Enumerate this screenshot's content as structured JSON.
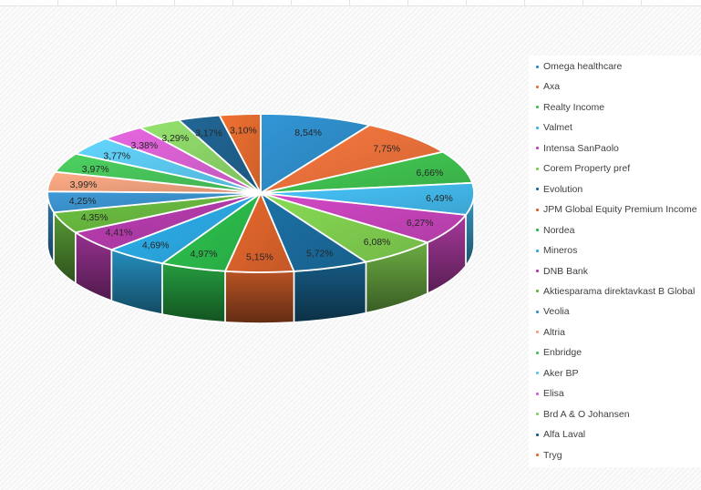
{
  "chart_data": {
    "type": "pie",
    "style": "3d-pie",
    "legend_position": "right",
    "slices": [
      {
        "name": "Omega healthcare",
        "value": 8.54,
        "label": "8,54%",
        "color": "#2e8bc6"
      },
      {
        "name": "Axa",
        "value": 7.75,
        "label": "7,75%",
        "color": "#e8703a"
      },
      {
        "name": "Realty Income",
        "value": 6.66,
        "label": "6,66%",
        "color": "#3fbf4f"
      },
      {
        "name": "Valmet",
        "value": 6.49,
        "label": "6,49%",
        "color": "#42b6e8"
      },
      {
        "name": "Intensa SanPaolo",
        "value": 6.27,
        "label": "6,27%",
        "color": "#c443b8"
      },
      {
        "name": "Corem Property pref",
        "value": 6.08,
        "label": "6,08%",
        "color": "#7fcc4f"
      },
      {
        "name": "Evolution",
        "value": 5.72,
        "label": "5,72%",
        "color": "#1a6a9a"
      },
      {
        "name": "JPM Global Equity Premium Income",
        "value": 5.15,
        "label": "5,15%",
        "color": "#d9622b"
      },
      {
        "name": "Nordea",
        "value": 4.97,
        "label": "4,97%",
        "color": "#2bb84a"
      },
      {
        "name": "Mineros",
        "value": 4.69,
        "label": "4,69%",
        "color": "#2ba6df"
      },
      {
        "name": "DNB Bank",
        "value": 4.41,
        "label": "4,41%",
        "color": "#b03aa8"
      },
      {
        "name": "Aktiesparama direktavkast B Global",
        "value": 4.35,
        "label": "4,35%",
        "color": "#66b53e"
      },
      {
        "name": "Veolia",
        "value": 4.25,
        "label": "4,25%",
        "color": "#3a8fc8"
      },
      {
        "name": "Altria",
        "value": 3.99,
        "label": "3,99%",
        "color": "#f0a07c"
      },
      {
        "name": "Enbridge",
        "value": 3.97,
        "label": "3,97%",
        "color": "#47c25a"
      },
      {
        "name": "Aker BP",
        "value": 3.77,
        "label": "3,77%",
        "color": "#5bc6ee"
      },
      {
        "name": "Elisa",
        "value": 3.38,
        "label": "3,38%",
        "color": "#d65fcf"
      },
      {
        "name": "Brd A & O Johansen",
        "value": 3.29,
        "label": "3,29%",
        "color": "#8ad266"
      },
      {
        "name": "Alfa Laval",
        "value": 3.17,
        "label": "3,17%",
        "color": "#1f5f8c"
      },
      {
        "name": "Tryg",
        "value": 3.1,
        "label": "3,10%",
        "color": "#e0692d"
      }
    ]
  }
}
